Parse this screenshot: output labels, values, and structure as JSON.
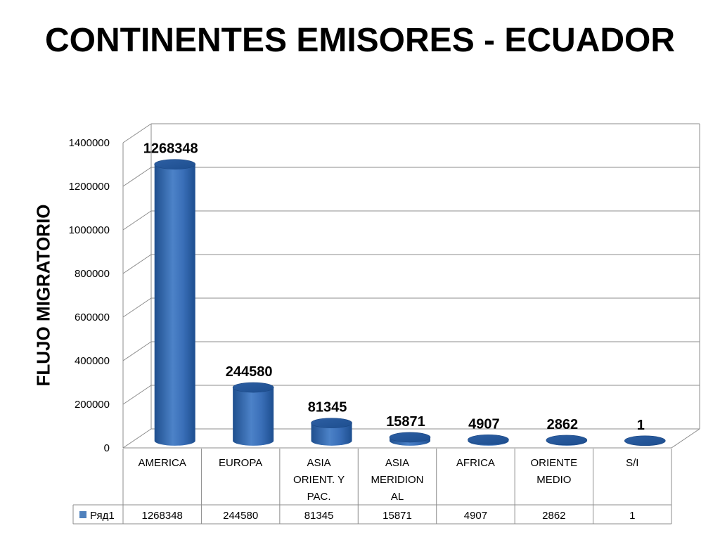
{
  "title": "CONTINENTES EMISORES - ECUADOR",
  "chart_data": {
    "type": "bar",
    "title": "",
    "xlabel": "",
    "ylabel": "FLUJO MIGRATORIO",
    "ylim": [
      0,
      1400000
    ],
    "yticks": [
      0,
      200000,
      400000,
      600000,
      800000,
      1000000,
      1200000,
      1400000
    ],
    "categories": [
      [
        "AMERICA"
      ],
      [
        "EUROPA"
      ],
      [
        "ASIA",
        "ORIENT. Y",
        "PAC."
      ],
      [
        "ASIA",
        "MERIDION",
        "AL"
      ],
      [
        "AFRICA"
      ],
      [
        "ORIENTE",
        "MEDIO"
      ],
      [
        "S/I"
      ]
    ],
    "series": [
      {
        "name": "Ряд1",
        "values": [
          1268348,
          244580,
          81345,
          15871,
          4907,
          2862,
          1
        ]
      }
    ],
    "data_labels": [
      "1268348",
      "244580",
      "81345",
      "15871",
      "4907",
      "2862",
      "1"
    ],
    "table_values": [
      "1268348",
      "244580",
      "81345",
      "15871",
      "4907",
      "2862",
      "1"
    ],
    "grid": true,
    "style": "3d-cylinder",
    "data_table": true,
    "colors": {
      "bar_main": "#3a6fb8",
      "bar_dark": "#1d4e8f",
      "bar_light": "#6b9ad6",
      "grid": "#8c8c8c",
      "legend_key": "#4f81bd"
    }
  }
}
